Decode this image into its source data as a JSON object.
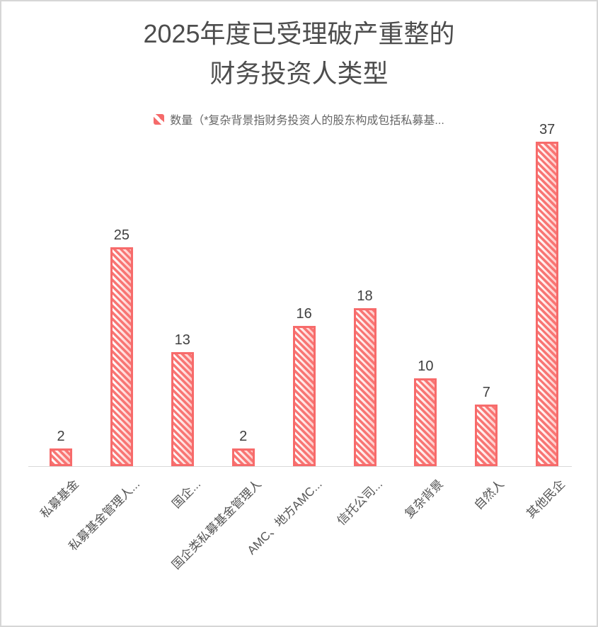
{
  "title": {
    "line1": "2025年度已受理破产重整的",
    "line2": "财务投资人类型"
  },
  "legend": {
    "swatch_icon": "hatched-red-square",
    "label": "数量（*复杂背景指财务投资人的股东构成包括私募基..."
  },
  "colors": {
    "bar_red": "#f76b6b",
    "bar_hatch_background": "#ffffff",
    "axis_line": "#d9d9d9",
    "title_text": "#4d4d4d",
    "value_label_text": "#3f3f3f",
    "category_label_text": "#555555",
    "legend_text": "#666666",
    "frame_border": "#d6d6d6"
  },
  "chart_data": {
    "type": "bar",
    "title": "2025年度已受理破产重整的财务投资人类型",
    "categories": [
      "私募基金",
      "私募基金管理人...",
      "国企...",
      "国企类私募基金管理人",
      "AMC、地方AMC...",
      "信托公司...",
      "复杂背景",
      "自然人",
      "其他民企"
    ],
    "series": [
      {
        "name": "数量",
        "values": [
          2,
          25,
          13,
          2,
          16,
          18,
          10,
          7,
          37
        ]
      }
    ],
    "xlabel": "",
    "ylabel": "",
    "ylim": [
      0,
      38
    ],
    "grid": false,
    "y_axis_shown": false,
    "legend_position": "top-center",
    "bar_style": "diagonal-hatch",
    "value_labels_shown": true,
    "category_label_rotation_deg": -45
  }
}
